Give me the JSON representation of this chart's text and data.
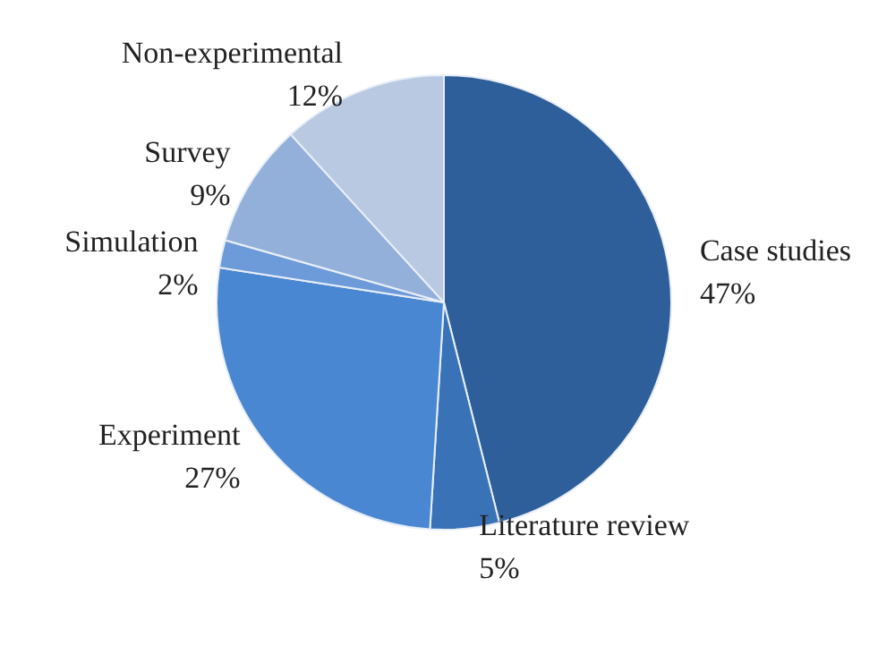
{
  "chart_data": {
    "type": "pie",
    "categories": [
      "Case studies",
      "Literature review",
      "Experiment",
      "Simulation",
      "Survey",
      "Non-experimental"
    ],
    "values": [
      47,
      5,
      27,
      2,
      9,
      12
    ],
    "value_labels": [
      "47%",
      "5%",
      "27%",
      "2%",
      "9%",
      "12%"
    ],
    "colors": [
      "#2f5f9b",
      "#3a72b8",
      "#4a87d2",
      "#6d9bd9",
      "#93b0da",
      "#b9c9e1"
    ],
    "legend": false
  }
}
